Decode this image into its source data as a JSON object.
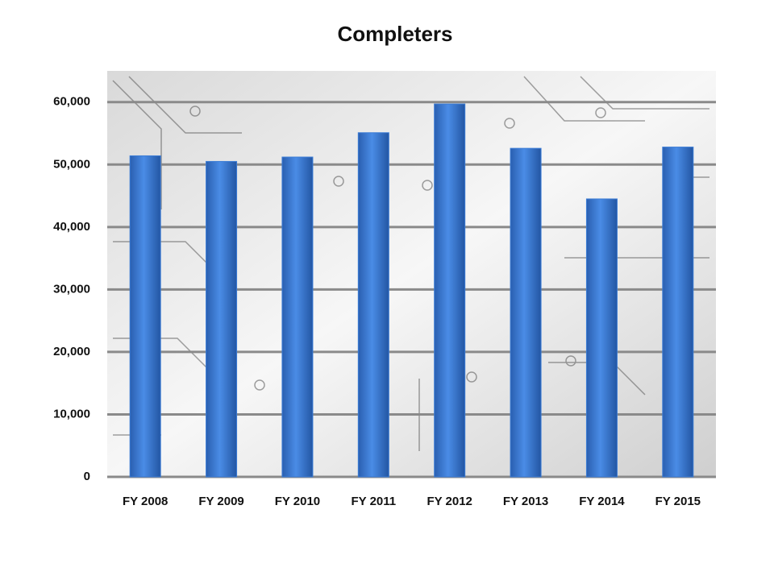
{
  "chart_data": {
    "type": "bar",
    "title": "Completers",
    "categories": [
      "FY 2008",
      "FY 2009",
      "FY 2010",
      "FY 2011",
      "FY 2012",
      "FY 2013",
      "FY 2014",
      "FY 2015"
    ],
    "values": [
      51400,
      50500,
      51200,
      55100,
      59700,
      52600,
      44500,
      52800
    ],
    "color": "#3a7bd5",
    "ylim": [
      0,
      65000
    ],
    "yticks": [
      0,
      {
        "value": 10000,
        "label": "10,000"
      },
      {
        "value": 20000,
        "label": "20,000"
      },
      {
        "value": 30000,
        "label": "30,000"
      },
      {
        "value": 40000,
        "label": "40,000"
      },
      {
        "value": 50000,
        "label": "50,000"
      },
      {
        "value": 60000,
        "label": "60,000"
      }
    ],
    "grid": true
  }
}
